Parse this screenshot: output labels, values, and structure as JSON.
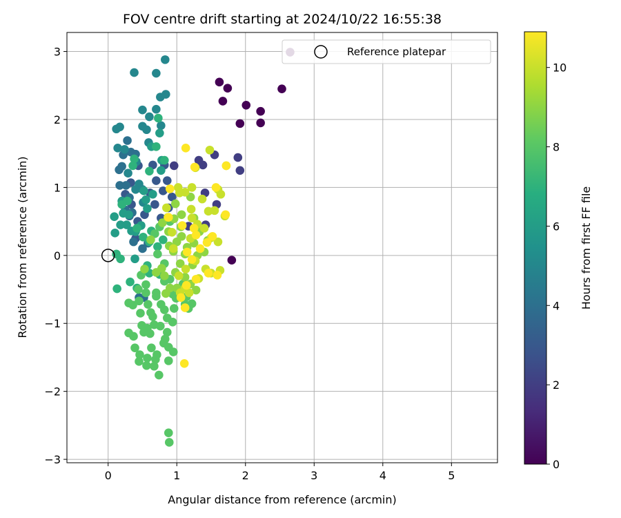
{
  "chart_data": {
    "type": "scatter",
    "title": "FOV centre drift starting at 2024/10/22 16:55:38",
    "xlabel": "Angular distance from reference (arcmin)",
    "ylabel": "Rotation from reference (arcmin)",
    "xlim": [
      -0.6,
      5.67
    ],
    "ylim": [
      -3.05,
      3.28
    ],
    "xticks": [
      0,
      1,
      2,
      3,
      4,
      5
    ],
    "yticks": [
      -3,
      -2,
      -1,
      0,
      1,
      2,
      3
    ],
    "grid": true,
    "legend": {
      "placement": "top-right",
      "entries": [
        "Reference platepar"
      ]
    },
    "colorbar": {
      "label": "Hours from first FF file",
      "colormap": "viridis",
      "range": [
        0,
        10.9
      ],
      "ticks": [
        0,
        2,
        4,
        6,
        8,
        10
      ]
    },
    "reference_point": {
      "x": 0,
      "y": 0
    },
    "series": [
      {
        "c": 0.0,
        "points": [
          [
            2.65,
            2.99
          ],
          [
            1.62,
            2.55
          ],
          [
            1.74,
            2.46
          ],
          [
            1.67,
            2.27
          ],
          [
            2.01,
            2.21
          ],
          [
            2.22,
            2.12
          ],
          [
            1.92,
            1.94
          ],
          [
            2.22,
            1.95
          ],
          [
            2.53,
            2.45
          ],
          [
            1.8,
            -0.07
          ]
        ]
      },
      {
        "c": 2.0,
        "points": [
          [
            0.96,
            1.32
          ],
          [
            1.32,
            1.4
          ],
          [
            1.38,
            1.33
          ],
          [
            1.55,
            1.48
          ],
          [
            1.89,
            1.44
          ],
          [
            1.92,
            1.25
          ],
          [
            1.41,
            0.92
          ],
          [
            1.58,
            0.75
          ],
          [
            1.42,
            0.45
          ],
          [
            1.29,
            0.38
          ],
          [
            1.17,
            0.43
          ]
        ]
      },
      {
        "c": 3.0,
        "points": [
          [
            0.82,
            1.33
          ],
          [
            0.65,
            1.33
          ],
          [
            0.7,
            1.1
          ],
          [
            0.86,
            1.1
          ],
          [
            0.8,
            0.95
          ],
          [
            0.61,
            0.92
          ],
          [
            0.93,
            0.86
          ],
          [
            0.68,
            0.75
          ],
          [
            0.88,
            0.7
          ],
          [
            0.53,
            0.6
          ],
          [
            0.77,
            0.55
          ],
          [
            0.43,
            0.5
          ],
          [
            0.34,
            0.75
          ],
          [
            0.25,
            0.9
          ],
          [
            0.44,
            1.32
          ],
          [
            0.33,
            1.07
          ],
          [
            0.4,
            0.25
          ]
        ]
      },
      {
        "c": 4.0,
        "points": [
          [
            0.28,
            1.69
          ],
          [
            0.33,
            1.52
          ],
          [
            0.22,
            1.48
          ],
          [
            0.4,
            1.49
          ],
          [
            0.16,
            1.26
          ],
          [
            0.2,
            1.31
          ],
          [
            0.17,
            1.03
          ],
          [
            0.26,
            1.03
          ],
          [
            0.31,
            0.85
          ],
          [
            0.25,
            0.67
          ],
          [
            0.31,
            0.58
          ],
          [
            0.35,
            0.63
          ],
          [
            0.37,
            0.2
          ],
          [
            0.5,
            0.1
          ],
          [
            0.58,
            0.18
          ],
          [
            0.52,
            -0.62
          ],
          [
            0.45,
            -0.62
          ]
        ]
      },
      {
        "c": 5.0,
        "points": [
          [
            0.38,
            2.69
          ],
          [
            0.7,
            2.68
          ],
          [
            0.83,
            2.88
          ],
          [
            0.12,
            1.86
          ],
          [
            0.17,
            1.89
          ],
          [
            0.5,
            1.9
          ],
          [
            0.56,
            1.85
          ],
          [
            0.77,
            1.91
          ],
          [
            0.59,
            1.66
          ],
          [
            0.6,
            2.04
          ],
          [
            0.7,
            2.15
          ],
          [
            0.76,
            2.33
          ],
          [
            0.84,
            2.37
          ],
          [
            0.5,
            2.14
          ],
          [
            0.14,
            1.58
          ],
          [
            0.24,
            1.56
          ],
          [
            0.41,
            1.38
          ],
          [
            0.29,
            1.21
          ],
          [
            0.45,
            1.05
          ],
          [
            0.5,
            0.97
          ],
          [
            0.51,
            0.78
          ],
          [
            0.4,
            0.97
          ]
        ]
      },
      {
        "c": 6.0,
        "points": [
          [
            0.75,
            1.8
          ],
          [
            0.63,
            1.6
          ],
          [
            0.78,
            1.4
          ],
          [
            0.77,
            1.25
          ],
          [
            0.52,
            0.95
          ],
          [
            0.65,
            0.9
          ],
          [
            0.57,
            0.69
          ],
          [
            0.3,
            0.6
          ],
          [
            0.27,
            0.45
          ],
          [
            0.34,
            0.36
          ],
          [
            0.4,
            0.35
          ],
          [
            0.22,
            0.62
          ],
          [
            0.09,
            0.57
          ],
          [
            0.18,
            0.45
          ],
          [
            0.1,
            0.33
          ],
          [
            0.2,
            0.8
          ],
          [
            0.48,
            0.44
          ],
          [
            0.55,
            0.82
          ],
          [
            0.39,
            -0.05
          ]
        ]
      },
      {
        "c": 7.0,
        "points": [
          [
            0.73,
            2.02
          ],
          [
            0.38,
            1.42
          ],
          [
            0.7,
            1.6
          ],
          [
            0.82,
            1.4
          ],
          [
            0.6,
            1.24
          ],
          [
            0.36,
            1.32
          ],
          [
            0.2,
            0.75
          ],
          [
            0.28,
            0.8
          ],
          [
            0.42,
            0.4
          ],
          [
            0.51,
            0.27
          ],
          [
            0.6,
            0.2
          ],
          [
            0.63,
            0.36
          ],
          [
            0.8,
            0.23
          ],
          [
            0.72,
            0.13
          ],
          [
            0.57,
            -0.15
          ],
          [
            0.12,
            0.02
          ],
          [
            0.18,
            -0.05
          ],
          [
            0.13,
            -0.49
          ],
          [
            0.32,
            -0.39
          ],
          [
            0.42,
            -0.48
          ],
          [
            0.6,
            -0.26
          ],
          [
            0.75,
            -0.28
          ]
        ]
      },
      {
        "c": 8.0,
        "points": [
          [
            0.9,
            0.5
          ],
          [
            0.75,
            0.42
          ],
          [
            0.68,
            0.32
          ],
          [
            0.72,
            0.02
          ],
          [
            0.82,
            -0.12
          ],
          [
            0.9,
            -0.35
          ],
          [
            0.94,
            -0.57
          ],
          [
            0.48,
            -0.29
          ],
          [
            0.55,
            -0.43
          ],
          [
            0.3,
            -0.7
          ],
          [
            0.36,
            -0.73
          ],
          [
            0.45,
            -0.67
          ],
          [
            0.58,
            -0.72
          ],
          [
            0.62,
            -0.84
          ],
          [
            0.82,
            -0.8
          ],
          [
            0.86,
            -0.92
          ],
          [
            0.94,
            -0.98
          ],
          [
            0.49,
            -1.03
          ],
          [
            0.57,
            -1.07
          ],
          [
            0.67,
            -1.02
          ],
          [
            0.76,
            -1.04
          ],
          [
            0.86,
            -1.13
          ],
          [
            0.3,
            -1.14
          ],
          [
            0.37,
            -1.19
          ],
          [
            0.52,
            -1.13
          ],
          [
            0.61,
            -1.15
          ],
          [
            0.83,
            -1.23
          ],
          [
            0.81,
            -1.29
          ],
          [
            0.88,
            -1.35
          ],
          [
            0.95,
            -1.42
          ],
          [
            0.39,
            -1.36
          ],
          [
            0.46,
            -1.46
          ],
          [
            0.63,
            -1.36
          ],
          [
            0.57,
            -1.51
          ],
          [
            0.71,
            -1.46
          ],
          [
            0.45,
            -1.56
          ],
          [
            0.56,
            -1.62
          ],
          [
            0.67,
            -1.63
          ],
          [
            0.69,
            -1.53
          ],
          [
            0.74,
            -1.76
          ],
          [
            0.88,
            -1.55
          ],
          [
            0.88,
            -2.61
          ],
          [
            0.89,
            -2.75
          ],
          [
            0.82,
            -0.38
          ],
          [
            0.96,
            -0.78
          ],
          [
            1.12,
            -0.72
          ],
          [
            1.17,
            -0.78
          ],
          [
            1.14,
            -0.61
          ],
          [
            0.99,
            -0.63
          ],
          [
            1.09,
            -0.42
          ],
          [
            1.22,
            -0.71
          ],
          [
            0.44,
            -0.5
          ],
          [
            0.55,
            -0.55
          ],
          [
            0.7,
            -0.6
          ],
          [
            0.77,
            -0.72
          ],
          [
            0.47,
            -0.85
          ],
          [
            0.65,
            -0.9
          ],
          [
            0.7,
            -0.55
          ]
        ]
      },
      {
        "c": 9.0,
        "points": [
          [
            0.62,
            0.23
          ],
          [
            0.88,
            0.35
          ],
          [
            0.95,
            0.06
          ],
          [
            1.07,
            0.28
          ],
          [
            1.15,
            0.12
          ],
          [
            1.05,
            -0.12
          ],
          [
            0.78,
            -0.19
          ],
          [
            0.7,
            -0.25
          ],
          [
            0.82,
            -0.3
          ],
          [
            0.9,
            -0.48
          ],
          [
            0.84,
            -0.56
          ],
          [
            1.0,
            -0.48
          ],
          [
            0.53,
            -0.2
          ],
          [
            1.0,
            0.2
          ],
          [
            1.12,
            0.02
          ],
          [
            1.23,
            -0.14
          ],
          [
            1.3,
            0.0
          ],
          [
            1.06,
            0.42
          ],
          [
            0.98,
            0.76
          ],
          [
            1.2,
            0.86
          ],
          [
            1.25,
            0.55
          ],
          [
            1.33,
            0.35
          ],
          [
            1.25,
            0.18
          ],
          [
            1.4,
            0.05
          ],
          [
            1.45,
            0.22
          ],
          [
            0.79,
            0.48
          ],
          [
            0.89,
            0.14
          ],
          [
            0.96,
            0.54
          ],
          [
            1.07,
            0.6
          ],
          [
            1.12,
            -0.32
          ],
          [
            1.2,
            -0.42
          ],
          [
            1.28,
            -0.51
          ],
          [
            0.98,
            -0.25
          ]
        ]
      },
      {
        "c": 10.0,
        "points": [
          [
            1.04,
            0.92
          ],
          [
            1.12,
            0.93
          ],
          [
            1.22,
            1.0
          ],
          [
            1.37,
            0.83
          ],
          [
            1.46,
            0.65
          ],
          [
            1.55,
            0.66
          ],
          [
            1.6,
            0.97
          ],
          [
            1.64,
            0.9
          ],
          [
            1.7,
            0.58
          ],
          [
            1.72,
            1.32
          ],
          [
            1.48,
            1.55
          ],
          [
            1.27,
            1.29
          ],
          [
            1.22,
            0.55
          ],
          [
            1.3,
            0.46
          ],
          [
            1.4,
            0.4
          ],
          [
            1.5,
            0.26
          ],
          [
            1.6,
            0.2
          ],
          [
            1.42,
            -0.2
          ],
          [
            1.5,
            -0.26
          ],
          [
            1.63,
            -0.22
          ],
          [
            1.32,
            -0.34
          ],
          [
            1.27,
            -0.08
          ],
          [
            1.2,
            0.25
          ],
          [
            1.13,
            -0.2
          ],
          [
            1.05,
            -0.55
          ],
          [
            0.93,
            0.34
          ],
          [
            0.87,
            0.56
          ],
          [
            0.85,
            0.7
          ],
          [
            0.95,
            0.1
          ],
          [
            1.03,
            -0.3
          ],
          [
            1.12,
            -0.48
          ],
          [
            1.18,
            -0.55
          ],
          [
            1.21,
            0.68
          ],
          [
            1.02,
            1.0
          ]
        ]
      },
      {
        "c": 10.9,
        "points": [
          [
            1.13,
            1.58
          ],
          [
            1.26,
            1.3
          ],
          [
            1.72,
            1.32
          ],
          [
            1.57,
            1.0
          ],
          [
            1.71,
            0.6
          ],
          [
            1.52,
            0.28
          ],
          [
            1.44,
            0.19
          ],
          [
            1.46,
            -0.26
          ],
          [
            1.59,
            -0.29
          ],
          [
            1.28,
            -0.35
          ],
          [
            1.14,
            -0.44
          ],
          [
            1.06,
            -0.62
          ],
          [
            1.12,
            -0.77
          ],
          [
            1.11,
            -1.59
          ],
          [
            1.25,
            0.4
          ],
          [
            1.28,
            0.3
          ],
          [
            1.15,
            0.05
          ],
          [
            1.22,
            -0.06
          ],
          [
            1.34,
            0.1
          ],
          [
            0.9,
            0.98
          ],
          [
            0.88,
            0.56
          ],
          [
            1.08,
            0.44
          ]
        ]
      }
    ]
  }
}
